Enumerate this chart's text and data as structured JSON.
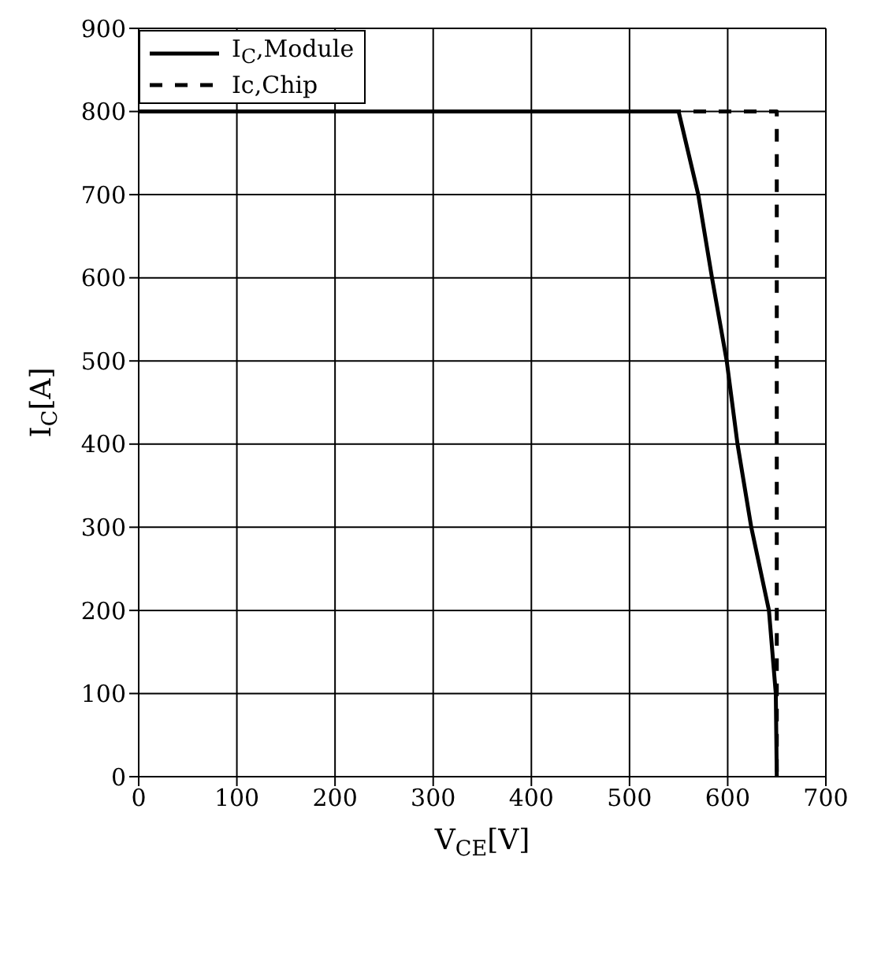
{
  "chart_data": {
    "type": "line",
    "xlabel": "V$_{CE}$[V]",
    "ylabel": "I$_{C}$[A]",
    "xlim": [
      0,
      700
    ],
    "xticks": [
      0,
      100,
      200,
      300,
      400,
      500,
      600,
      700
    ],
    "ylim": [
      0,
      900
    ],
    "yticks": [
      0,
      100,
      200,
      300,
      400,
      500,
      600,
      700,
      800,
      900
    ],
    "grid": true,
    "legend": "top left",
    "marker": "none",
    "series": [
      {
        "name": "I$_{C}$,Module",
        "color": "#000000",
        "line_style": "solid",
        "x": [
          0,
          550,
          570,
          584,
          599,
          610,
          624,
          642,
          649,
          650
        ],
        "values": [
          800,
          800,
          700,
          600,
          500,
          400,
          300,
          200,
          100,
          0
        ]
      },
      {
        "name": "Ic,Chip",
        "color": "#000000",
        "line_style": "dashed",
        "x": [
          0,
          650,
          650
        ],
        "values": [
          800,
          800,
          0
        ]
      }
    ]
  }
}
